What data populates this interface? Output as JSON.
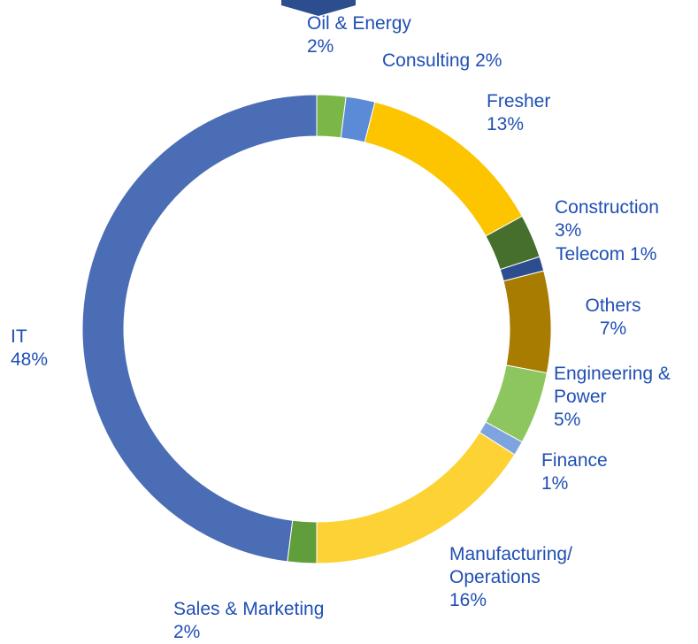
{
  "chart_data": {
    "type": "donut",
    "categories": [
      "Oil & Energy",
      "Consulting",
      "Fresher",
      "Construction",
      "Telecom",
      "Others",
      "Engineering & Power",
      "Finance",
      "Manufacturing/ Operations",
      "Sales & Marketing",
      "IT"
    ],
    "values": [
      2,
      2,
      13,
      3,
      1,
      7,
      5,
      1,
      16,
      2,
      48
    ],
    "value_labels": [
      "2%",
      "2%",
      "13%",
      "3%",
      "1%",
      "7%",
      "5%",
      "1%",
      "16%",
      "2%",
      "48%"
    ],
    "colors": [
      "#7ab648",
      "#5b8ad6",
      "#fcc500",
      "#466e2c",
      "#2c4d8e",
      "#a77c00",
      "#8dc65f",
      "#7ea4e0",
      "#fdd235",
      "#5f9e3a",
      "#4a6db5"
    ]
  }
}
